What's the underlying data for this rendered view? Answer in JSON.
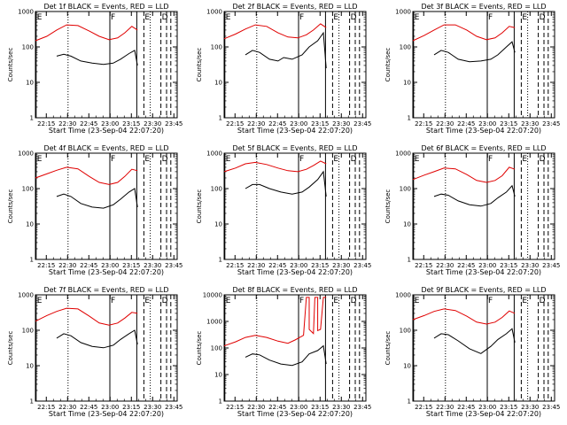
{
  "chart_data": {
    "type": "line",
    "shared": {
      "xlabel": "Start Time (23-Sep-04 22:07:20)",
      "ylabel": "Counts/sec",
      "xtick_labels": [
        "22:15",
        "22:30",
        "22:45",
        "23:00",
        "23:15",
        "23:30",
        "23:45"
      ],
      "xtick_minutes": [
        7.67,
        22.67,
        37.67,
        52.67,
        67.67,
        82.67,
        97.67
      ],
      "xlim_minutes": [
        0,
        100
      ],
      "yscale": "log",
      "ytick_labels_default": [
        "1",
        "10",
        "100",
        "1000"
      ],
      "ytick_labels_panel8": [
        "1",
        "10",
        "100",
        "1000",
        "10000"
      ],
      "series_colors": {
        "Events": "#000000",
        "LLD": "#e00000"
      },
      "markers": [
        {
          "label": "E",
          "minute": 0.5,
          "style": "solid"
        },
        {
          "label": "F",
          "minute": 52.5,
          "style": "solid"
        },
        {
          "label": "E",
          "minute": 76.5,
          "style": "dashed"
        },
        {
          "label": "D",
          "minute": 88.5,
          "style": "dashed"
        },
        {
          "label": "",
          "minute": 23.0,
          "style": "dotted"
        },
        {
          "label": "",
          "minute": 71.5,
          "style": "solid"
        },
        {
          "label": "",
          "minute": 81.0,
          "style": "dotted"
        },
        {
          "label": "",
          "minute": 92.5,
          "style": "dashed"
        },
        {
          "label": "",
          "minute": 95.5,
          "style": "dashed"
        }
      ]
    },
    "panels": [
      {
        "title": "Det 1f BLACK = Events, RED = LLD",
        "ylim": [
          1,
          1000
        ],
        "lld": [
          [
            0,
            150
          ],
          [
            8,
            200
          ],
          [
            15,
            300
          ],
          [
            22,
            420
          ],
          [
            30,
            400
          ],
          [
            38,
            280
          ],
          [
            45,
            200
          ],
          [
            52,
            160
          ],
          [
            58,
            180
          ],
          [
            63,
            250
          ],
          [
            68,
            380
          ],
          [
            72,
            300
          ]
        ],
        "events": [
          [
            15,
            55
          ],
          [
            20,
            62
          ],
          [
            25,
            55
          ],
          [
            32,
            40
          ],
          [
            40,
            35
          ],
          [
            48,
            32
          ],
          [
            55,
            35
          ],
          [
            60,
            45
          ],
          [
            66,
            65
          ],
          [
            70,
            80
          ],
          [
            72,
            30
          ]
        ]
      },
      {
        "title": "Det 2f BLACK = Events, RED = LLD",
        "ylim": [
          1,
          1000
        ],
        "lld": [
          [
            0,
            170
          ],
          [
            8,
            230
          ],
          [
            15,
            320
          ],
          [
            22,
            420
          ],
          [
            30,
            380
          ],
          [
            38,
            250
          ],
          [
            45,
            190
          ],
          [
            52,
            180
          ],
          [
            58,
            220
          ],
          [
            63,
            300
          ],
          [
            68,
            450
          ],
          [
            72,
            350
          ]
        ],
        "events": [
          [
            15,
            60
          ],
          [
            20,
            80
          ],
          [
            25,
            70
          ],
          [
            32,
            45
          ],
          [
            38,
            40
          ],
          [
            42,
            50
          ],
          [
            48,
            45
          ],
          [
            55,
            60
          ],
          [
            60,
            100
          ],
          [
            66,
            150
          ],
          [
            70,
            250
          ],
          [
            72,
            25
          ]
        ]
      },
      {
        "title": "Det 3f BLACK = Events, RED = LLD",
        "ylim": [
          1,
          1000
        ],
        "lld": [
          [
            0,
            150
          ],
          [
            8,
            210
          ],
          [
            15,
            300
          ],
          [
            22,
            420
          ],
          [
            30,
            420
          ],
          [
            38,
            300
          ],
          [
            45,
            200
          ],
          [
            52,
            160
          ],
          [
            58,
            180
          ],
          [
            63,
            250
          ],
          [
            68,
            380
          ],
          [
            72,
            350
          ]
        ],
        "events": [
          [
            15,
            60
          ],
          [
            20,
            80
          ],
          [
            25,
            70
          ],
          [
            32,
            45
          ],
          [
            40,
            38
          ],
          [
            48,
            40
          ],
          [
            55,
            45
          ],
          [
            60,
            60
          ],
          [
            66,
            100
          ],
          [
            70,
            140
          ],
          [
            72,
            70
          ]
        ]
      },
      {
        "title": "Det 4f BLACK = Events, RED = LLD",
        "ylim": [
          1,
          1000
        ],
        "lld": [
          [
            0,
            200
          ],
          [
            8,
            260
          ],
          [
            15,
            330
          ],
          [
            22,
            400
          ],
          [
            30,
            360
          ],
          [
            38,
            220
          ],
          [
            45,
            150
          ],
          [
            52,
            130
          ],
          [
            58,
            150
          ],
          [
            63,
            220
          ],
          [
            68,
            350
          ],
          [
            72,
            320
          ]
        ],
        "events": [
          [
            15,
            60
          ],
          [
            20,
            70
          ],
          [
            25,
            60
          ],
          [
            32,
            38
          ],
          [
            40,
            30
          ],
          [
            48,
            28
          ],
          [
            55,
            35
          ],
          [
            60,
            50
          ],
          [
            66,
            80
          ],
          [
            70,
            100
          ],
          [
            72,
            30
          ]
        ]
      },
      {
        "title": "Det 5f BLACK = Events, RED = LLD",
        "ylim": [
          1,
          1000
        ],
        "lld": [
          [
            0,
            300
          ],
          [
            8,
            380
          ],
          [
            15,
            500
          ],
          [
            22,
            550
          ],
          [
            30,
            480
          ],
          [
            38,
            380
          ],
          [
            45,
            320
          ],
          [
            52,
            300
          ],
          [
            58,
            350
          ],
          [
            63,
            450
          ],
          [
            68,
            600
          ],
          [
            72,
            500
          ]
        ],
        "events": [
          [
            15,
            100
          ],
          [
            20,
            130
          ],
          [
            25,
            130
          ],
          [
            32,
            100
          ],
          [
            40,
            80
          ],
          [
            48,
            70
          ],
          [
            55,
            80
          ],
          [
            60,
            110
          ],
          [
            66,
            180
          ],
          [
            70,
            300
          ],
          [
            72,
            60
          ]
        ]
      },
      {
        "title": "Det 6f BLACK = Events, RED = LLD",
        "ylim": [
          1,
          1000
        ],
        "lld": [
          [
            0,
            180
          ],
          [
            8,
            240
          ],
          [
            15,
            300
          ],
          [
            22,
            380
          ],
          [
            30,
            360
          ],
          [
            38,
            250
          ],
          [
            45,
            170
          ],
          [
            52,
            150
          ],
          [
            58,
            170
          ],
          [
            63,
            230
          ],
          [
            68,
            400
          ],
          [
            72,
            350
          ]
        ],
        "events": [
          [
            15,
            60
          ],
          [
            20,
            70
          ],
          [
            25,
            65
          ],
          [
            32,
            45
          ],
          [
            40,
            35
          ],
          [
            48,
            32
          ],
          [
            55,
            38
          ],
          [
            60,
            55
          ],
          [
            66,
            80
          ],
          [
            70,
            120
          ],
          [
            72,
            60
          ]
        ]
      },
      {
        "title": "Det 7f BLACK = Events, RED = LLD",
        "ylim": [
          1,
          1000
        ],
        "lld": [
          [
            0,
            180
          ],
          [
            8,
            260
          ],
          [
            15,
            340
          ],
          [
            22,
            420
          ],
          [
            30,
            400
          ],
          [
            38,
            250
          ],
          [
            45,
            160
          ],
          [
            52,
            140
          ],
          [
            58,
            160
          ],
          [
            63,
            220
          ],
          [
            68,
            320
          ],
          [
            72,
            300
          ]
        ],
        "events": [
          [
            15,
            60
          ],
          [
            20,
            80
          ],
          [
            25,
            70
          ],
          [
            32,
            45
          ],
          [
            40,
            35
          ],
          [
            48,
            32
          ],
          [
            55,
            38
          ],
          [
            60,
            55
          ],
          [
            66,
            80
          ],
          [
            70,
            100
          ],
          [
            72,
            40
          ]
        ]
      },
      {
        "title": "Det 8f BLACK = Events, RED = LLD",
        "ylim": [
          1,
          10000
        ],
        "lld": [
          [
            0,
            120
          ],
          [
            8,
            170
          ],
          [
            15,
            250
          ],
          [
            22,
            300
          ],
          [
            30,
            250
          ],
          [
            38,
            180
          ],
          [
            45,
            150
          ],
          [
            50,
            200
          ],
          [
            56,
            300
          ],
          [
            58,
            8000
          ],
          [
            60,
            8000
          ],
          [
            60,
            500
          ],
          [
            63,
            350
          ],
          [
            64,
            8000
          ],
          [
            66,
            8000
          ],
          [
            66,
            450
          ],
          [
            68,
            500
          ],
          [
            70,
            8000
          ],
          [
            72,
            8000
          ]
        ],
        "events": [
          [
            15,
            45
          ],
          [
            20,
            60
          ],
          [
            25,
            55
          ],
          [
            32,
            35
          ],
          [
            40,
            25
          ],
          [
            48,
            22
          ],
          [
            55,
            30
          ],
          [
            60,
            60
          ],
          [
            66,
            80
          ],
          [
            70,
            120
          ],
          [
            72,
            25
          ]
        ]
      },
      {
        "title": "Det 9f BLACK = Events, RED = LLD",
        "ylim": [
          1,
          1000
        ],
        "lld": [
          [
            0,
            200
          ],
          [
            8,
            260
          ],
          [
            15,
            340
          ],
          [
            22,
            400
          ],
          [
            30,
            360
          ],
          [
            38,
            250
          ],
          [
            45,
            170
          ],
          [
            52,
            150
          ],
          [
            58,
            170
          ],
          [
            63,
            230
          ],
          [
            68,
            350
          ],
          [
            72,
            300
          ]
        ],
        "events": [
          [
            15,
            60
          ],
          [
            20,
            80
          ],
          [
            25,
            75
          ],
          [
            32,
            50
          ],
          [
            40,
            30
          ],
          [
            48,
            22
          ],
          [
            55,
            35
          ],
          [
            60,
            55
          ],
          [
            66,
            80
          ],
          [
            70,
            110
          ],
          [
            72,
            45
          ]
        ]
      }
    ]
  }
}
